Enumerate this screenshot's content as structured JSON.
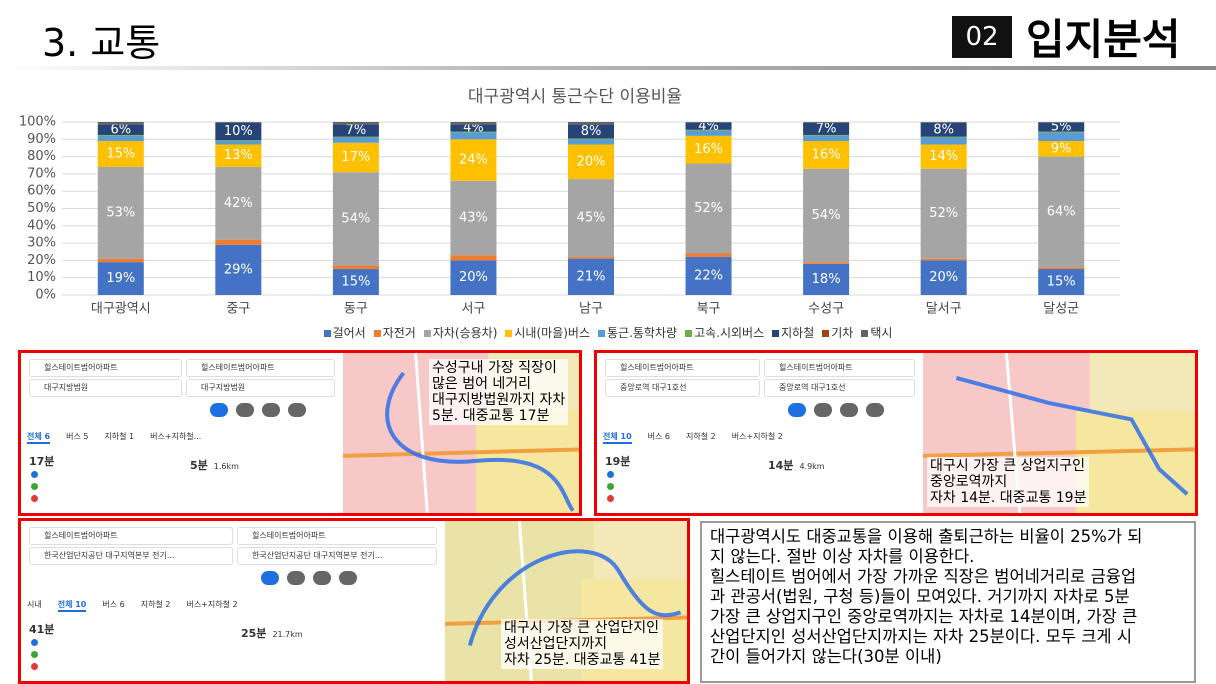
{
  "header": {
    "title": "3. 교통",
    "badge": "02",
    "section": "입지분석"
  },
  "chart_data": {
    "type": "stacked_bar",
    "title": "대구광역시 통근수단 이용비율",
    "categories": [
      "대구광역시",
      "중구",
      "동구",
      "서구",
      "남구",
      "북구",
      "수성구",
      "달서구",
      "달성군"
    ],
    "series": [
      {
        "name": "걸어서",
        "color": "#4472c4",
        "values": [
          19,
          29,
          15,
          20,
          21,
          22,
          18,
          20,
          15
        ],
        "value_labels": [
          "19%",
          "29%",
          "15%",
          "20%",
          "21%",
          "22%",
          "18%",
          "20%",
          "15%"
        ]
      },
      {
        "name": "자전거",
        "color": "#ed7d31",
        "values": [
          2,
          3,
          2,
          3,
          1,
          2,
          1,
          1,
          1
        ]
      },
      {
        "name": "자차(승용차)",
        "color": "#a5a5a5",
        "values": [
          53,
          42,
          54,
          43,
          45,
          52,
          54,
          52,
          64
        ],
        "value_labels": [
          "53%",
          "42%",
          "54%",
          "43%",
          "45%",
          "52%",
          "54%",
          "52%",
          "64%"
        ]
      },
      {
        "name": "시내(마을)버스",
        "color": "#ffc000",
        "values": [
          15,
          13,
          17,
          24,
          20,
          16,
          16,
          14,
          9
        ],
        "value_labels": [
          "15%",
          "13%",
          "17%",
          "24%",
          "20%",
          "16%",
          "16%",
          "14%",
          "9%"
        ]
      },
      {
        "name": "통근.통학차량",
        "color": "#5b9bd5",
        "values": [
          3,
          2,
          3,
          4,
          3,
          3,
          3,
          4,
          5
        ]
      },
      {
        "name": "고속.시외버스",
        "color": "#70ad47",
        "values": [
          0.5,
          0.5,
          0.5,
          0.5,
          0.5,
          0.5,
          0.5,
          0.5,
          0.5
        ]
      },
      {
        "name": "지하철",
        "color": "#264478",
        "values": [
          6,
          10,
          7,
          4,
          8,
          4,
          7,
          8,
          5
        ],
        "value_labels": [
          "6%",
          "10%",
          "7%",
          "4%",
          "8%",
          "4%",
          "7%",
          "8%",
          "5%"
        ]
      },
      {
        "name": "기차",
        "color": "#9e480e",
        "values": [
          0,
          0,
          0,
          0,
          0,
          0,
          0,
          0,
          0
        ]
      },
      {
        "name": "택시",
        "color": "#636363",
        "values": [
          1.5,
          0.5,
          1.5,
          1.5,
          1.5,
          0.5,
          0.5,
          0.5,
          0.5
        ]
      }
    ],
    "ylim": [
      0,
      100
    ],
    "yticks": [
      {
        "value": 0,
        "label": "0%"
      },
      {
        "value": 10,
        "label": "10%"
      },
      {
        "value": 20,
        "label": "20%"
      },
      {
        "value": 30,
        "label": "30%"
      },
      {
        "value": 40,
        "label": "40%"
      },
      {
        "value": 50,
        "label": "50%"
      },
      {
        "value": 60,
        "label": "60%"
      },
      {
        "value": 70,
        "label": "70%"
      },
      {
        "value": 80,
        "label": "80%"
      },
      {
        "value": 90,
        "label": "90%"
      },
      {
        "value": 100,
        "label": "100%"
      }
    ],
    "grid": true,
    "legend": "bottom"
  },
  "panels": [
    {
      "origin": "힐스테이트범어아파트",
      "destination": "대구지방법원",
      "tabs": [
        "전체 6",
        "버스 5",
        "지하철 1",
        "버스+지하철..."
      ],
      "transit_time": "17분",
      "car_time": "5분",
      "car_distance": "1.6km",
      "caption": [
        "수성구내 가장 직장이",
        "많은 범어 네거리",
        "대구지방법원까지 자차",
        "5분. 대중교통 17분"
      ]
    },
    {
      "origin": "힐스테이트범어아파트",
      "destination": "중앙로역 대구1호선",
      "tabs": [
        "전체 10",
        "버스 6",
        "지하철 2",
        "버스+지하철 2"
      ],
      "transit_time": "19분",
      "car_time": "14분",
      "car_distance": "4.9km",
      "caption": [
        "대구시 가장 큰 상업지구인",
        "중앙로역까지",
        "자차 14분. 대중교통 19분"
      ]
    },
    {
      "origin": "힐스테이트범어아파트",
      "destination": "한국산업단지공단 대구지역본부 전기...",
      "tabs": [
        "시내",
        "전체 10",
        "버스 6",
        "지하철 2",
        "버스+지하철 2"
      ],
      "transit_time": "41분",
      "car_time": "25분",
      "car_distance": "21.7km",
      "caption": [
        "대구시 가장 큰 산업단지인",
        "성서산업단지까지",
        "자차 25분. 대중교통 41분"
      ]
    }
  ],
  "summary": [
    "대구광역시도 대중교통을 이용해 출퇴근하는 비율이 25%가 되",
    "지 않는다. 절반 이상 자차를 이용한다.",
    "힐스테이트 범어에서 가장 가까운 직장은 범어네거리로 금융업",
    "과 관공서(법원, 구청 등)들이 모여있다. 거기까지 자차로 5분",
    "가장 큰 상업지구인 중앙로역까지는 자차로 14분이며, 가장 큰",
    "산업단지인 성서산업단지까지는 자차 25분이다. 모두 크게 시",
    "간이 들어가지 않는다(30분 이내)"
  ]
}
